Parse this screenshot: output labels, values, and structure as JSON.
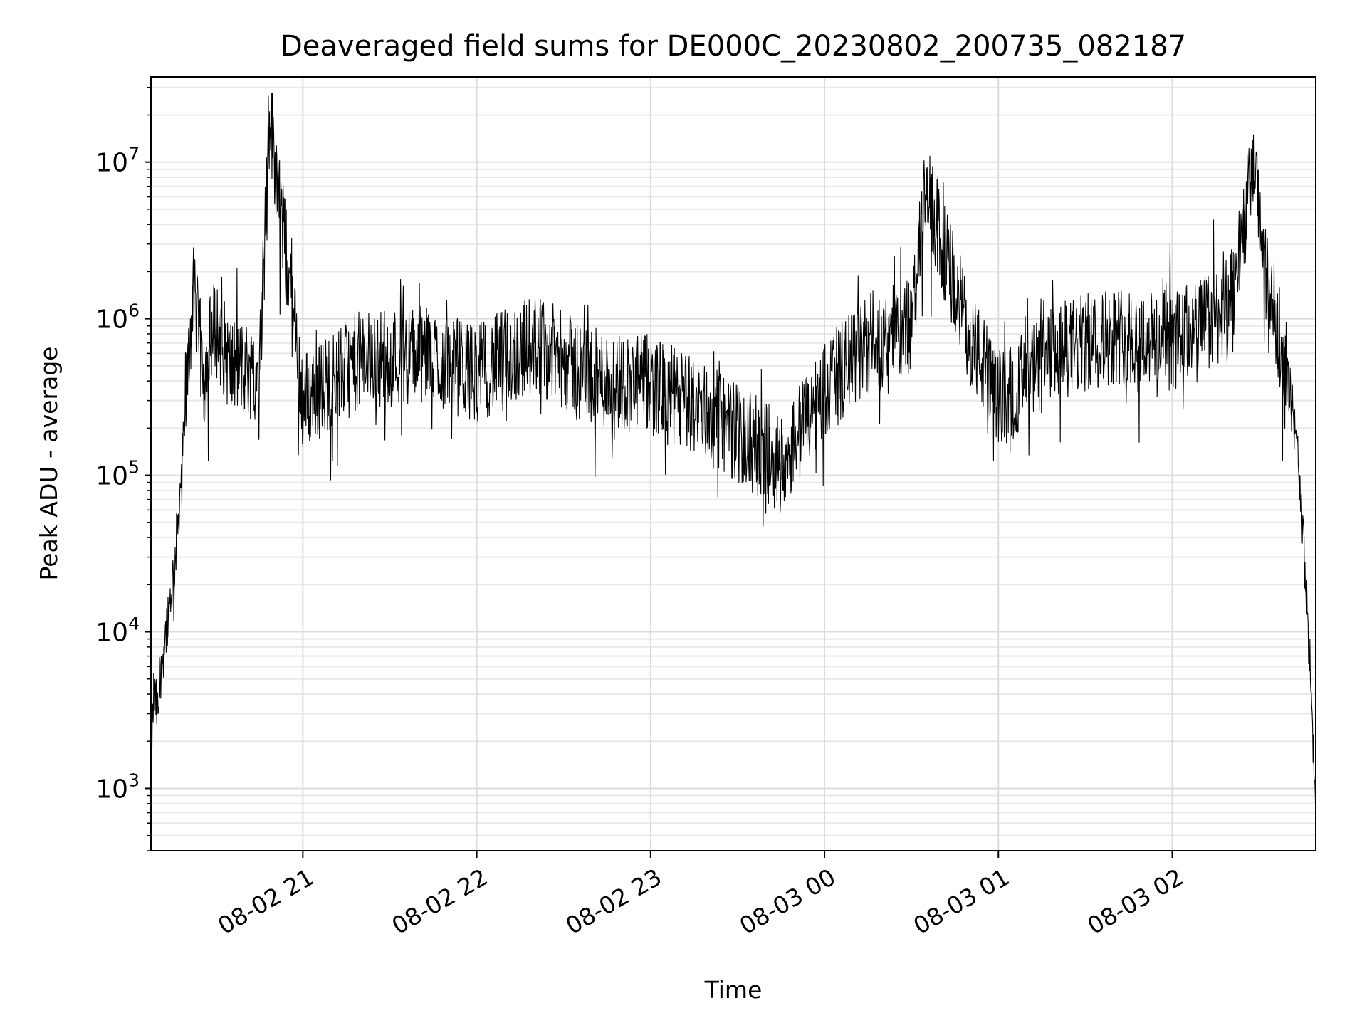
{
  "chart_data": {
    "type": "line",
    "title": "Deaveraged field sums for DE000C_20230802_200735_082187",
    "xlabel": "Time",
    "ylabel": "Peak ADU - average",
    "y_scale": "log",
    "grid": true,
    "x_ticks": [
      "08-02 21",
      "08-02 22",
      "08-02 23",
      "08-03 00",
      "08-03 01",
      "08-03 02"
    ],
    "y_ticks": [
      {
        "base": "10",
        "exp": "3",
        "value": 1000
      },
      {
        "base": "10",
        "exp": "4",
        "value": 10000
      },
      {
        "base": "10",
        "exp": "5",
        "value": 100000
      },
      {
        "base": "10",
        "exp": "6",
        "value": 1000000
      },
      {
        "base": "10",
        "exp": "7",
        "value": 10000000
      }
    ],
    "xlim": [
      "2023-08-02 20:07:35",
      "2023-08-03 02:49:30"
    ],
    "ylim": [
      400,
      35000000
    ],
    "series": [
      {
        "color": "#000000",
        "x": [
          "2023-08-02 20:07:35",
          "2023-08-02 20:08:30",
          "2023-08-02 20:10:00",
          "2023-08-02 20:12:00",
          "2023-08-02 20:14:00",
          "2023-08-02 20:16:00",
          "2023-08-02 20:18:00",
          "2023-08-02 20:20:00",
          "2023-08-02 20:22:00",
          "2023-08-02 20:24:00",
          "2023-08-02 20:26:00",
          "2023-08-02 20:28:00",
          "2023-08-02 20:30:00",
          "2023-08-02 20:35:00",
          "2023-08-02 20:45:00",
          "2023-08-02 20:48:30",
          "2023-08-02 21:00:00",
          "2023-08-02 21:20:00",
          "2023-08-02 21:40:00",
          "2023-08-02 22:00:00",
          "2023-08-02 22:20:00",
          "2023-08-02 22:40:00",
          "2023-08-02 23:00:00",
          "2023-08-02 23:20:00",
          "2023-08-02 23:45:00",
          "2023-08-03 00:00:00",
          "2023-08-03 00:15:00",
          "2023-08-03 00:30:00",
          "2023-08-03 00:35:00",
          "2023-08-03 00:50:00",
          "2023-08-03 01:00:00",
          "2023-08-03 01:20:00",
          "2023-08-03 01:40:00",
          "2023-08-03 02:00:00",
          "2023-08-03 02:20:00",
          "2023-08-03 02:28:00",
          "2023-08-03 02:33:00",
          "2023-08-03 02:38:00",
          "2023-08-03 02:41:00",
          "2023-08-03 02:44:00",
          "2023-08-03 02:46:00",
          "2023-08-03 02:48:00",
          "2023-08-03 02:49:00"
        ],
        "y": [
          1200,
          4000,
          3000,
          8000,
          15000,
          30000,
          100000,
          350000,
          1500000,
          800000,
          400000,
          700000,
          900000,
          500000,
          450000,
          21000000,
          300000,
          550000,
          600000,
          450000,
          700000,
          420000,
          380000,
          250000,
          120000,
          350000,
          700000,
          900000,
          6500000,
          800000,
          300000,
          600000,
          800000,
          700000,
          1200000,
          9500000,
          1500000,
          700000,
          300000,
          100000,
          20000,
          4000,
          1100
        ]
      }
    ]
  }
}
